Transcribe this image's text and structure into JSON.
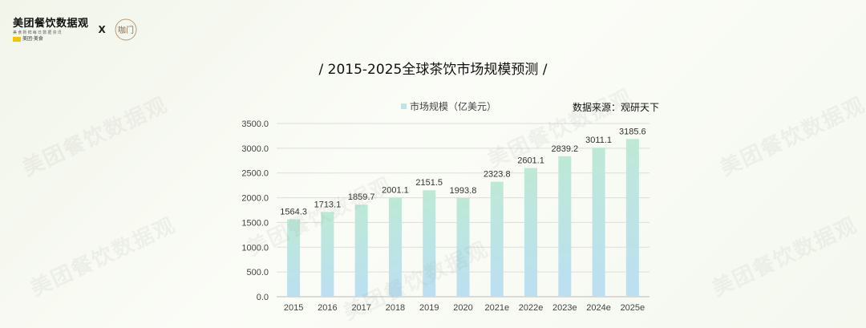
{
  "header": {
    "logo_main": "美团餐饮数据观",
    "logo_sub": "美食新鲜每日数据资讯",
    "logo_brand": "美团·美食",
    "separator": "X",
    "partner_glyph": "咖门"
  },
  "watermark_text": "美团餐饮数据观",
  "chart_data": {
    "type": "bar",
    "title": "/ 2015-2025全球茶饮市场规模预测 /",
    "source": "数据来源：观研天下",
    "categories": [
      "2015",
      "2016",
      "2017",
      "2018",
      "2019",
      "2020",
      "2021e",
      "2022e",
      "2023e",
      "2024e",
      "2025e"
    ],
    "series": [
      {
        "name": "市场规模（亿美元）",
        "values": [
          1564.3,
          1713.1,
          1859.7,
          2001.1,
          2151.5,
          1993.8,
          2323.8,
          2601.1,
          2839.2,
          3011.1,
          3185.6
        ],
        "labels": [
          "1564.3",
          "1713.1",
          "1859.7",
          "2001.1",
          "2151.5",
          "1993.8",
          "2323.8",
          "2601.1",
          "2839.2",
          "3011.1",
          "3185.6"
        ]
      }
    ],
    "ylim": [
      0,
      3500
    ],
    "yticks": [
      "0.0",
      "500.0",
      "1000.0",
      "1500.0",
      "2000.0",
      "2500.0",
      "3000.0",
      "3500.0"
    ],
    "xlabel": "",
    "ylabel": "",
    "grid": true,
    "legend_position": "top-center",
    "colors": {
      "bar_top": "#bde9d6",
      "bar_bottom": "#bcdff2",
      "grid": "#dddddd",
      "axis": "#bbbbbb"
    }
  }
}
